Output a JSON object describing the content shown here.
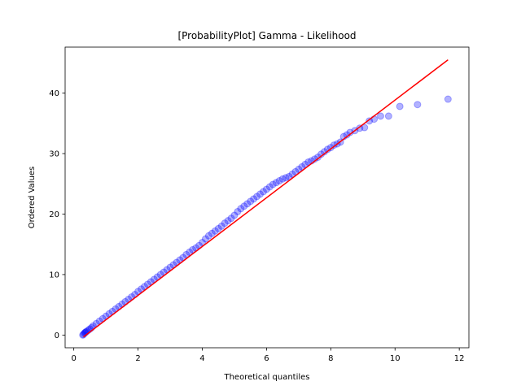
{
  "chart_data": {
    "type": "scatter",
    "title": "[ProbabilityPlot] Gamma - Likelihood",
    "xlabel": "Theoretical quantiles",
    "ylabel": "Ordered Values",
    "xlim": [
      -0.27,
      12.3
    ],
    "ylim": [
      -2.1,
      47.6
    ],
    "xticks": [
      0,
      2,
      4,
      6,
      8,
      10,
      12
    ],
    "yticks": [
      0,
      10,
      20,
      30,
      40
    ],
    "grid": false,
    "legend": "none",
    "colors": {
      "points": "#0000ff",
      "fit_line": "#ff0000"
    },
    "fit_line": {
      "x": [
        0.3,
        11.65
      ],
      "y": [
        -0.3,
        45.5
      ]
    },
    "points": {
      "x": [
        0.28,
        0.3,
        0.33,
        0.35,
        0.37,
        0.4,
        0.45,
        0.5,
        0.55,
        0.6,
        0.7,
        0.8,
        0.9,
        1.0,
        1.1,
        1.2,
        1.3,
        1.4,
        1.5,
        1.6,
        1.7,
        1.8,
        1.9,
        2.0,
        2.1,
        2.2,
        2.3,
        2.4,
        2.5,
        2.6,
        2.7,
        2.8,
        2.9,
        3.0,
        3.1,
        3.2,
        3.3,
        3.4,
        3.5,
        3.6,
        3.7,
        3.8,
        3.9,
        4.0,
        4.1,
        4.2,
        4.3,
        4.4,
        4.5,
        4.6,
        4.7,
        4.8,
        4.9,
        5.0,
        5.1,
        5.2,
        5.3,
        5.4,
        5.5,
        5.6,
        5.7,
        5.8,
        5.9,
        6.0,
        6.1,
        6.2,
        6.3,
        6.4,
        6.5,
        6.6,
        6.7,
        6.8,
        6.9,
        7.0,
        7.1,
        7.2,
        7.3,
        7.4,
        7.5,
        7.6,
        7.7,
        7.8,
        7.9,
        8.0,
        8.1,
        8.2,
        8.3,
        8.4,
        8.5,
        8.6,
        8.75,
        8.9,
        9.05,
        9.2,
        9.35,
        9.55,
        9.8,
        10.15,
        10.7,
        11.65
      ],
      "y": [
        0.0,
        0.1,
        0.3,
        0.4,
        0.5,
        0.6,
        0.8,
        1.0,
        1.2,
        1.5,
        1.9,
        2.3,
        2.7,
        3.1,
        3.5,
        3.9,
        4.3,
        4.7,
        5.1,
        5.5,
        5.9,
        6.3,
        6.7,
        7.2,
        7.6,
        8.0,
        8.4,
        8.8,
        9.2,
        9.6,
        10.0,
        10.4,
        10.8,
        11.2,
        11.6,
        12.0,
        12.4,
        12.8,
        13.3,
        13.7,
        14.1,
        14.4,
        14.8,
        15.3,
        15.9,
        16.4,
        16.8,
        17.2,
        17.6,
        18.0,
        18.5,
        18.9,
        19.3,
        19.8,
        20.4,
        20.9,
        21.3,
        21.7,
        22.1,
        22.5,
        22.9,
        23.3,
        23.7,
        24.1,
        24.5,
        24.9,
        25.2,
        25.5,
        25.8,
        26.0,
        26.2,
        26.6,
        27.0,
        27.4,
        27.8,
        28.2,
        28.6,
        28.8,
        29.1,
        29.4,
        29.9,
        30.3,
        30.7,
        31.0,
        31.4,
        31.6,
        31.9,
        32.8,
        33.1,
        33.5,
        33.8,
        34.2,
        34.3,
        35.4,
        35.7,
        36.2,
        36.2,
        37.8,
        38.1,
        39.0
      ]
    }
  }
}
